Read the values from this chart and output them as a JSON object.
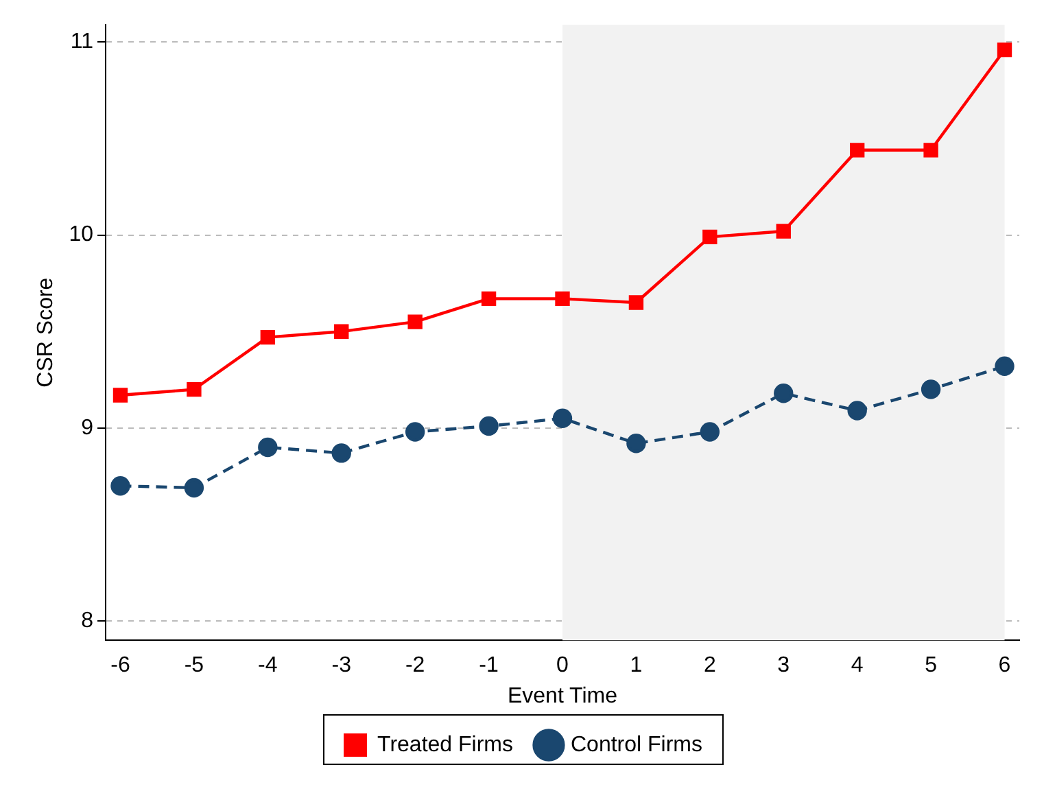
{
  "chart_data": {
    "type": "line",
    "xlabel": "Event Time",
    "ylabel": "CSR Score",
    "x": [
      -6,
      -5,
      -4,
      -3,
      -2,
      -1,
      0,
      1,
      2,
      3,
      4,
      5,
      6
    ],
    "series": [
      {
        "name": "Treated Firms",
        "color": "#ff0000",
        "marker": "square",
        "line_style": "solid",
        "values": [
          9.17,
          9.2,
          9.47,
          9.5,
          9.55,
          9.67,
          9.67,
          9.65,
          9.99,
          10.02,
          10.44,
          10.44,
          10.96
        ]
      },
      {
        "name": "Control Firms",
        "color": "#1a476f",
        "marker": "circle",
        "line_style": "dashed",
        "values": [
          8.7,
          8.69,
          8.9,
          8.87,
          8.98,
          9.01,
          9.05,
          8.92,
          8.98,
          9.18,
          9.09,
          9.2,
          9.32
        ]
      }
    ],
    "xlim": [
      -6.2,
      6.2
    ],
    "xticks": [
      -6,
      -5,
      -4,
      -3,
      -2,
      -1,
      0,
      1,
      2,
      3,
      4,
      5,
      6
    ],
    "ylim": [
      7.9,
      11.09
    ],
    "yticks": [
      8,
      9,
      10,
      11
    ],
    "bands": [
      {
        "axis": "x",
        "from": 0,
        "to": 6,
        "color": "#f2f2f2"
      }
    ],
    "grid": "y",
    "legend": "bottom"
  }
}
